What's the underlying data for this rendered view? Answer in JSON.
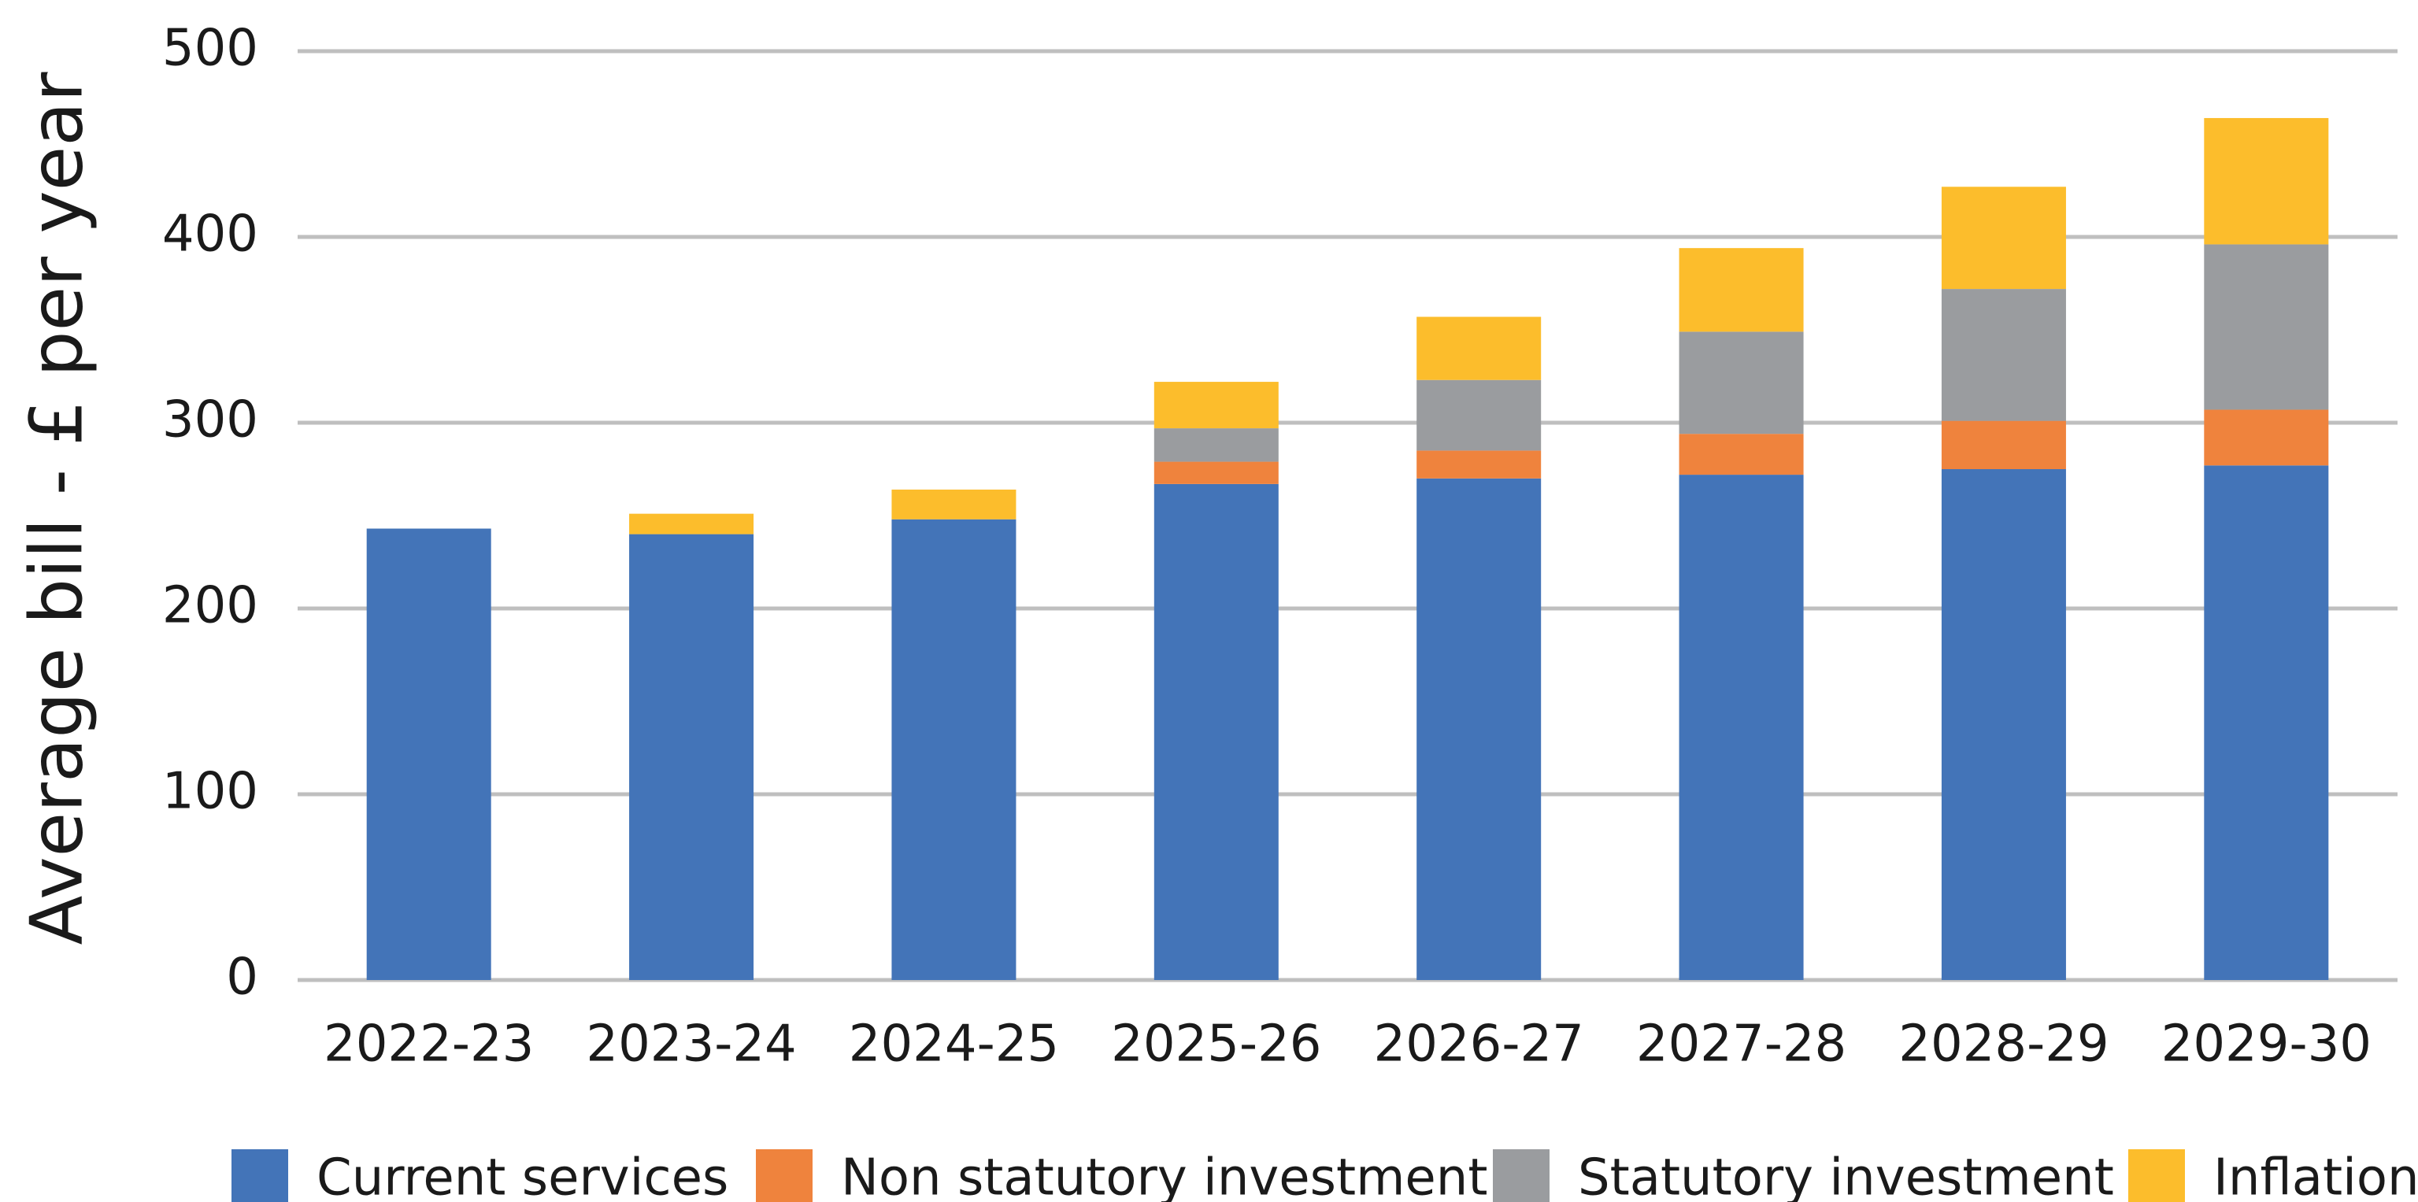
{
  "chart_data": {
    "type": "stacked_bar",
    "y_axis_label": "Average bill - £ per year",
    "categories": [
      "2022-23",
      "2023-24",
      "2024-25",
      "2025-26",
      "2026-27",
      "2027-28",
      "2028-29",
      "2029-30"
    ],
    "series": [
      {
        "name": "Current services",
        "color": "#4374b8",
        "values": [
          243,
          240,
          248,
          267,
          270,
          272,
          275,
          277
        ]
      },
      {
        "name": "Non statutory investment",
        "color": "#ef833d",
        "values": [
          0,
          0,
          0,
          12,
          15,
          22,
          26,
          30
        ]
      },
      {
        "name": "Statutory investment",
        "color": "#9a9c9f",
        "values": [
          0,
          0,
          0,
          18,
          38,
          55,
          71,
          89
        ]
      },
      {
        "name": "Inflation",
        "color": "#fcbd2c",
        "values": [
          0,
          11,
          16,
          25,
          34,
          45,
          55,
          68
        ]
      }
    ],
    "ylim": [
      0,
      500
    ],
    "yticks": [
      0,
      100,
      200,
      300,
      400,
      500
    ],
    "grid": true,
    "legend": "bottom"
  }
}
